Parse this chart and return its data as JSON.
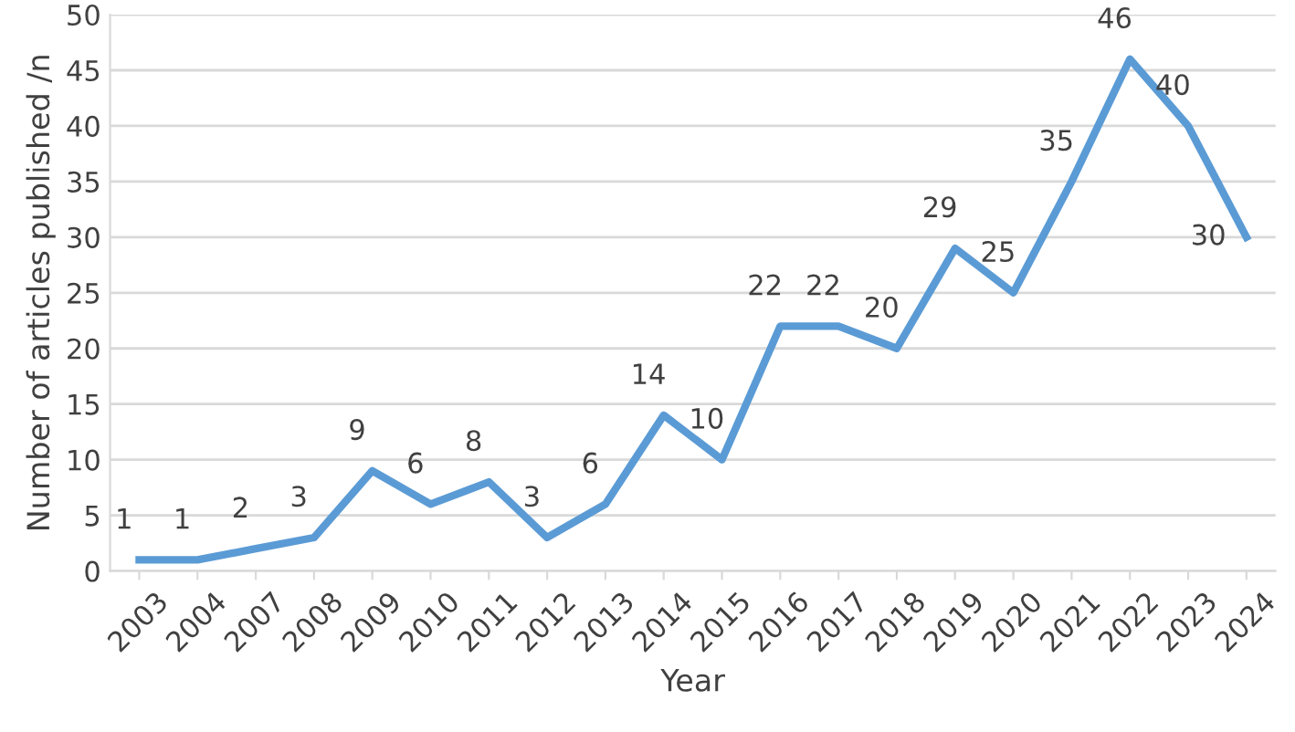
{
  "chart_data": {
    "type": "line",
    "xlabel": "Year",
    "ylabel": "Number of articles published /n",
    "categories": [
      "2003",
      "2004",
      "2007",
      "2008",
      "2009",
      "2010",
      "2011",
      "2012",
      "2013",
      "2014",
      "2015",
      "2016",
      "2017",
      "2018",
      "2019",
      "2020",
      "2021",
      "2022",
      "2023",
      "2024"
    ],
    "series": [
      {
        "color": "#5b9bd5",
        "values": [
          1,
          1,
          2,
          3,
          9,
          6,
          8,
          3,
          6,
          14,
          10,
          22,
          22,
          20,
          29,
          25,
          35,
          46,
          40,
          30
        ]
      }
    ],
    "ylim": [
      0,
      50
    ],
    "yticks": [
      0,
      5,
      10,
      15,
      20,
      25,
      30,
      35,
      40,
      45,
      50
    ],
    "grid": "y",
    "data_labels": true,
    "marker": "none",
    "line_style": "solid",
    "legend": false
  }
}
